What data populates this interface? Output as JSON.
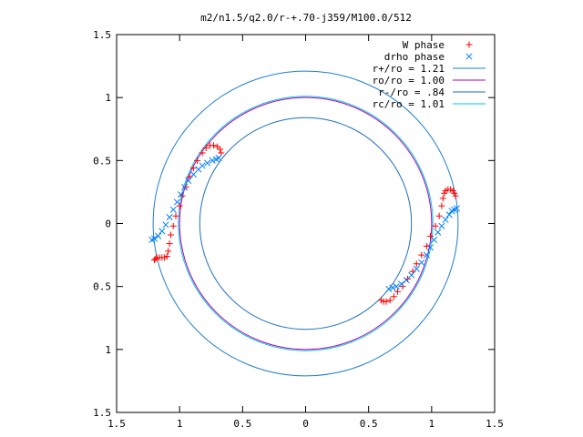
{
  "chart_data": {
    "type": "scatter",
    "title": "m2/n1.5/q2.0/r-+.70-j359/M100.0/512",
    "xlim": [
      -1.5,
      1.5
    ],
    "ylim": [
      -1.5,
      1.5
    ],
    "x_tick_values": [
      -1.5,
      -1,
      -0.5,
      0,
      0.5,
      1,
      1.5
    ],
    "x_tick_labels": [
      "1.5",
      "1",
      "0.5",
      "0",
      "0.5",
      "1",
      "1.5"
    ],
    "y_tick_values": [
      1.5,
      1,
      0.5,
      0,
      -0.5,
      -1,
      -1.5
    ],
    "y_tick_labels": [
      "1.5",
      "1",
      "0.5",
      "0",
      "0.5",
      "1",
      "1.5"
    ],
    "grid": false,
    "legend_position": "top-right",
    "legend": [
      {
        "label": "W phase",
        "marker": "+",
        "color": "#ff0000"
      },
      {
        "label": "drho phase",
        "marker": "x",
        "color": "#0080ff"
      },
      {
        "label": "r+/ro = 1.21",
        "line": true,
        "color": "#1f7fcf"
      },
      {
        "label": "ro/ro = 1.00",
        "line": true,
        "color": "#b000b0"
      },
      {
        "label": "r-/ro = .84",
        "line": true,
        "color": "#1f6fbf"
      },
      {
        "label": "rc/ro = 1.01",
        "line": true,
        "color": "#00c8e0"
      }
    ],
    "circles": [
      {
        "name": "r+/ro",
        "r": 1.21,
        "color": "#1f7fcf"
      },
      {
        "name": "ro/ro",
        "r": 1.0,
        "color": "#b000b0"
      },
      {
        "name": "r-/ro",
        "r": 0.84,
        "color": "#1f6fbf"
      },
      {
        "name": "rc/ro",
        "r": 1.01,
        "color": "#00c8e0"
      }
    ],
    "series": [
      {
        "marker": "+",
        "color": "#ff0000",
        "points": [
          [
            -1.2,
            -0.29
          ],
          [
            -1.19,
            -0.28
          ],
          [
            -1.18,
            -0.27
          ],
          [
            -1.16,
            -0.27
          ],
          [
            -1.14,
            -0.27
          ],
          [
            -1.12,
            -0.27
          ],
          [
            -1.1,
            -0.26
          ],
          [
            -1.09,
            -0.22
          ],
          [
            -1.08,
            -0.16
          ],
          [
            -1.07,
            -0.09
          ],
          [
            -1.05,
            -0.02
          ],
          [
            -1.03,
            0.06
          ],
          [
            -1.0,
            0.14
          ],
          [
            -0.98,
            0.22
          ],
          [
            -0.95,
            0.29
          ],
          [
            -0.92,
            0.37
          ],
          [
            -0.89,
            0.44
          ],
          [
            -0.86,
            0.5
          ],
          [
            -0.82,
            0.56
          ],
          [
            -0.79,
            0.6
          ],
          [
            -0.76,
            0.62
          ],
          [
            -0.73,
            0.62
          ],
          [
            -0.7,
            0.61
          ],
          [
            -0.68,
            0.59
          ],
          [
            -0.67,
            0.56
          ],
          [
            0.6,
            -0.61
          ],
          [
            0.62,
            -0.62
          ],
          [
            0.64,
            -0.62
          ],
          [
            0.67,
            -0.61
          ],
          [
            0.7,
            -0.58
          ],
          [
            0.73,
            -0.54
          ],
          [
            0.77,
            -0.5
          ],
          [
            0.81,
            -0.44
          ],
          [
            0.85,
            -0.38
          ],
          [
            0.88,
            -0.32
          ],
          [
            0.92,
            -0.25
          ],
          [
            0.96,
            -0.18
          ],
          [
            0.99,
            -0.1
          ],
          [
            1.03,
            -0.02
          ],
          [
            1.06,
            0.06
          ],
          [
            1.08,
            0.14
          ],
          [
            1.09,
            0.2
          ],
          [
            1.1,
            0.24
          ],
          [
            1.11,
            0.26
          ],
          [
            1.13,
            0.27
          ],
          [
            1.15,
            0.27
          ],
          [
            1.17,
            0.26
          ],
          [
            1.18,
            0.24
          ],
          [
            1.19,
            0.22
          ]
        ]
      },
      {
        "marker": "x",
        "color": "#0080ff",
        "points": [
          [
            -1.22,
            -0.13
          ],
          [
            -1.2,
            -0.12
          ],
          [
            -1.17,
            -0.1
          ],
          [
            -1.14,
            -0.06
          ],
          [
            -1.11,
            -0.01
          ],
          [
            -1.08,
            0.05
          ],
          [
            -1.05,
            0.11
          ],
          [
            -1.02,
            0.17
          ],
          [
            -0.99,
            0.23
          ],
          [
            -0.96,
            0.29
          ],
          [
            -0.93,
            0.34
          ],
          [
            -0.89,
            0.39
          ],
          [
            -0.85,
            0.43
          ],
          [
            -0.82,
            0.46
          ],
          [
            -0.78,
            0.48
          ],
          [
            -0.74,
            0.5
          ],
          [
            -0.71,
            0.51
          ],
          [
            -0.69,
            0.52
          ],
          [
            0.66,
            -0.52
          ],
          [
            0.69,
            -0.51
          ],
          [
            0.72,
            -0.5
          ],
          [
            0.76,
            -0.48
          ],
          [
            0.8,
            -0.45
          ],
          [
            0.84,
            -0.41
          ],
          [
            0.88,
            -0.36
          ],
          [
            0.92,
            -0.31
          ],
          [
            0.96,
            -0.25
          ],
          [
            0.99,
            -0.19
          ],
          [
            1.02,
            -0.13
          ],
          [
            1.05,
            -0.07
          ],
          [
            1.08,
            -0.02
          ],
          [
            1.11,
            0.03
          ],
          [
            1.14,
            0.07
          ],
          [
            1.16,
            0.1
          ],
          [
            1.18,
            0.11
          ],
          [
            1.2,
            0.12
          ]
        ]
      }
    ]
  }
}
